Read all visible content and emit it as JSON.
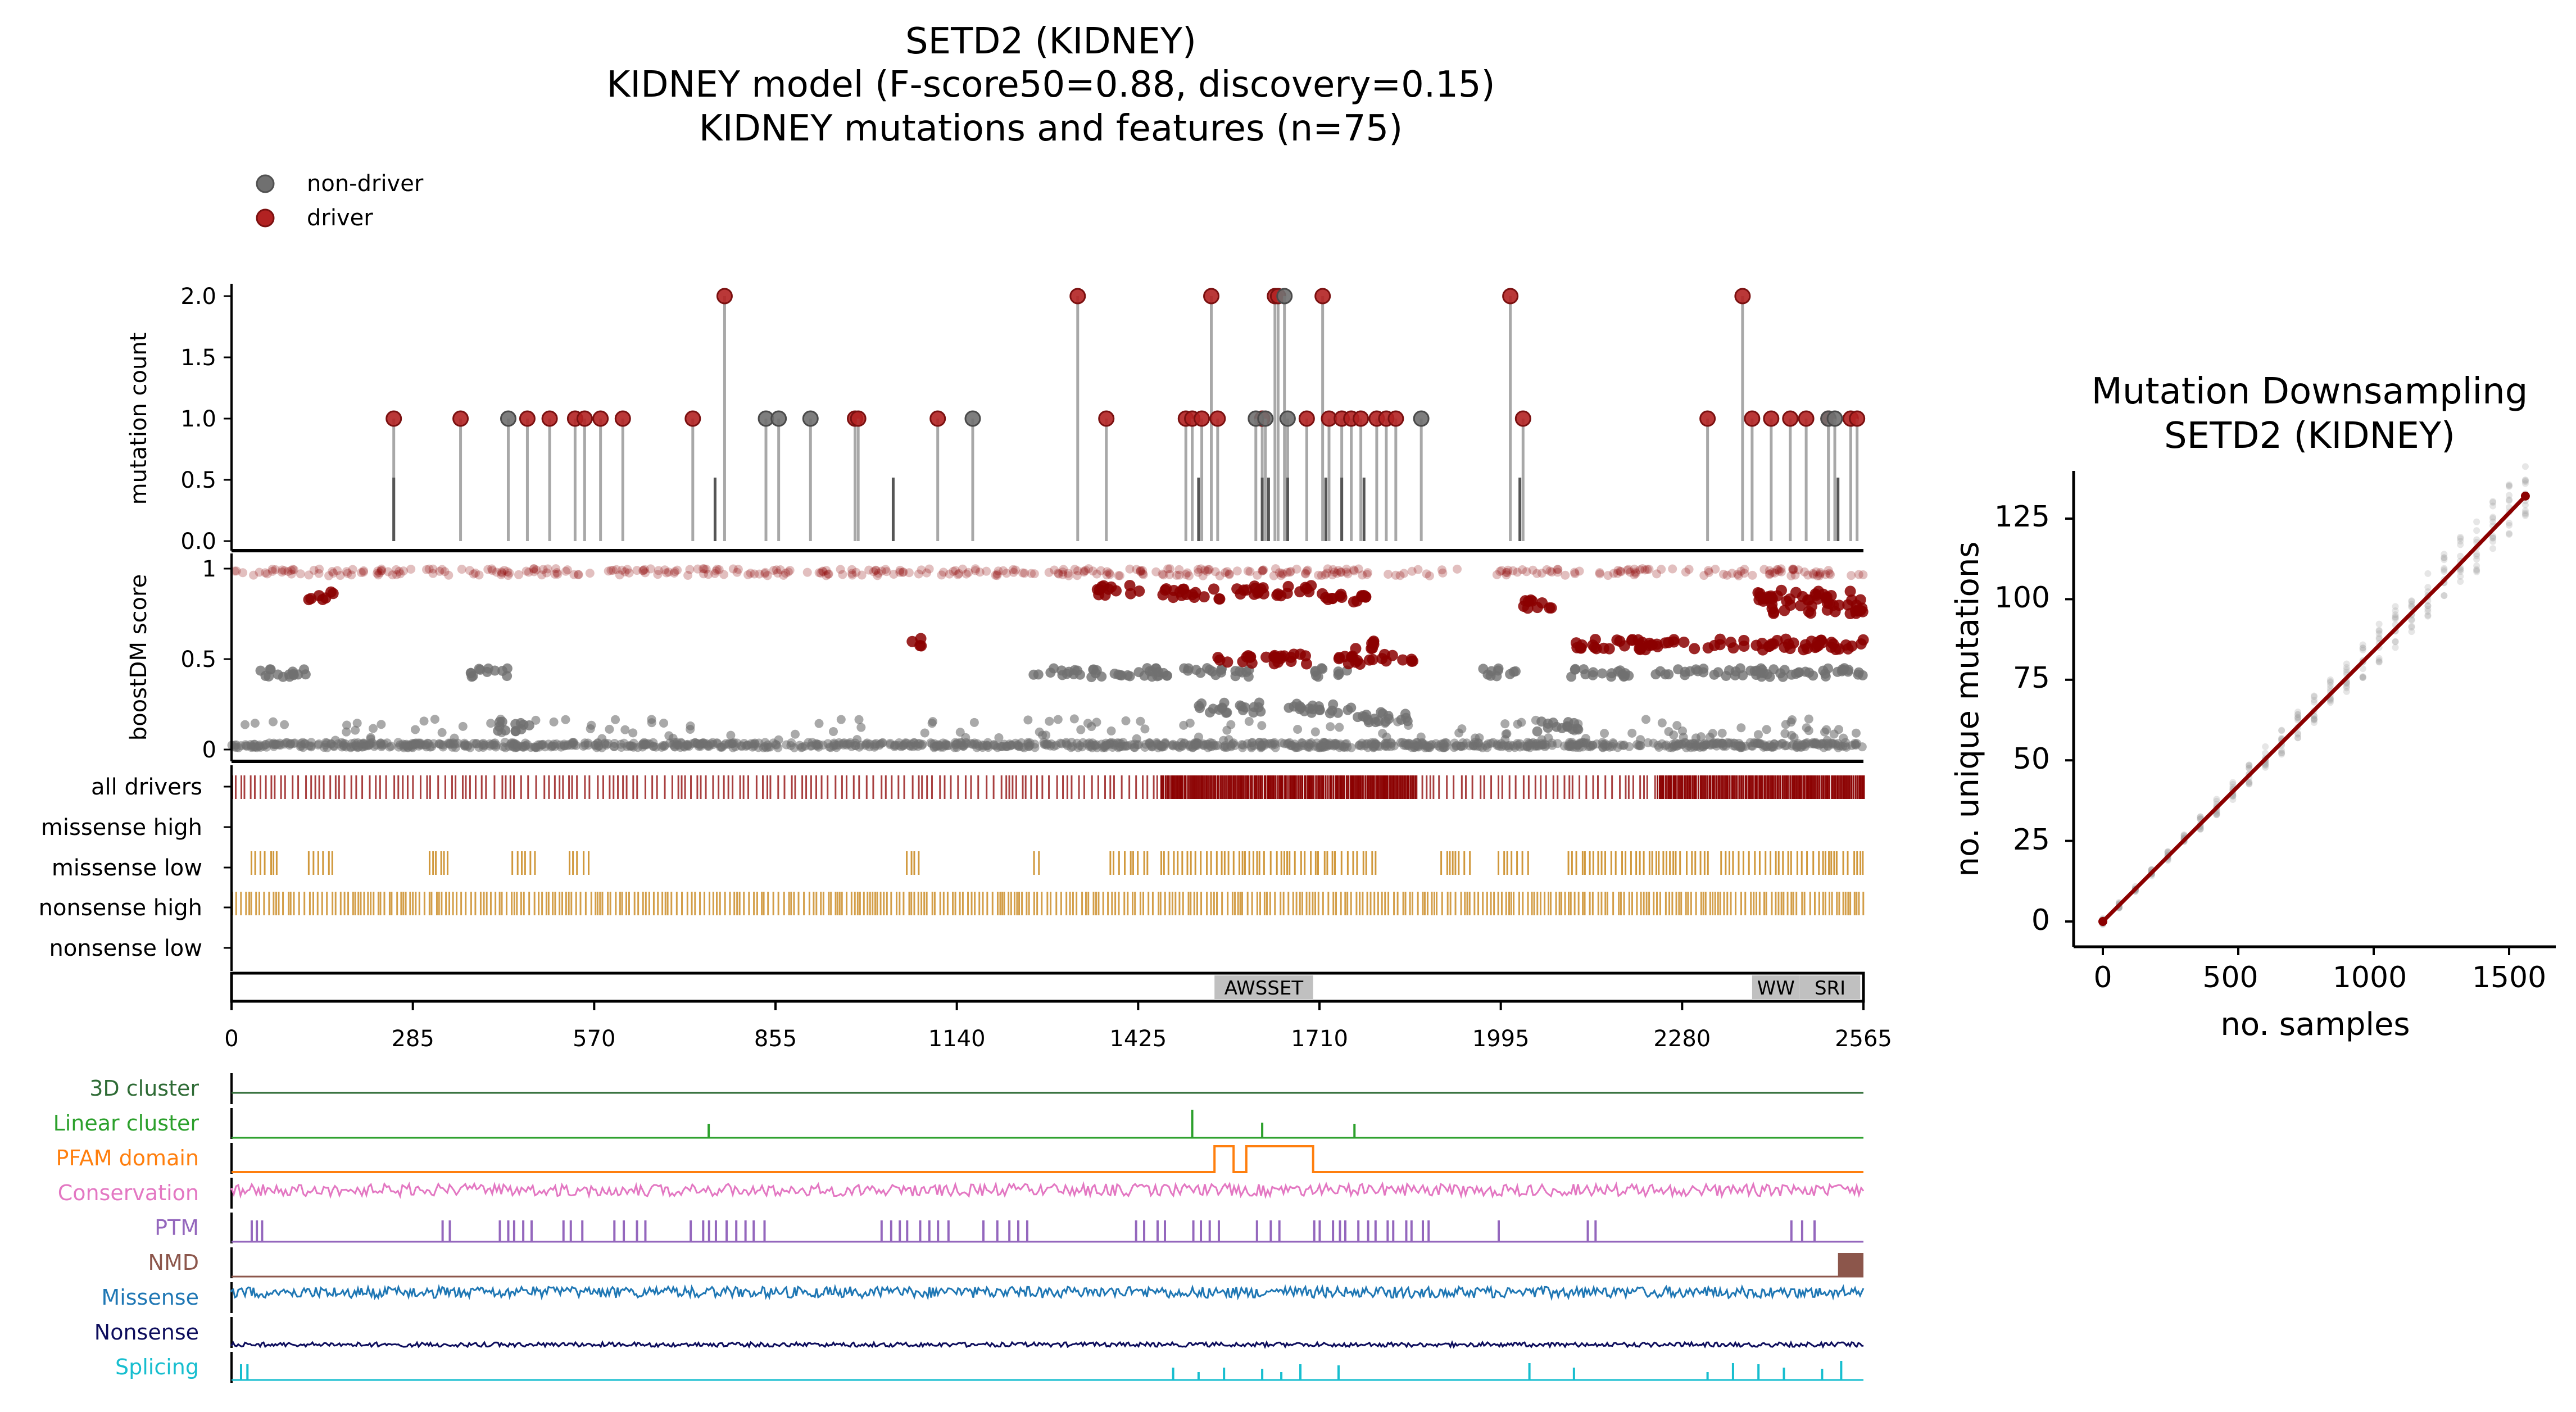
{
  "figure": {
    "title_line1": "SETD2 (KIDNEY)",
    "title_line2": "KIDNEY model (F-score50=0.88, discovery=0.15)",
    "title_line3": "KIDNEY mutations and features (n=75)"
  },
  "legend": {
    "placement": "top-left",
    "items": [
      {
        "label": "non-driver",
        "color": "#707070"
      },
      {
        "label": "driver",
        "color": "#b22222"
      }
    ]
  },
  "colors": {
    "driver": "#b22222",
    "driver_dark": "#8b0000",
    "nondriver": "#707070",
    "csqn": "#c8861a",
    "cluster3d": "#2e6b35",
    "linear": "#2ca02c",
    "pfam": "#ff7f0e",
    "conservation": "#e377c2",
    "ptm": "#9467bd",
    "nmd": "#8c564b",
    "missense": "#1f77b4",
    "nonsense": "#0d0d5c",
    "splicing": "#17becf",
    "domain_fill": "#c0c0c0",
    "fit_line": "#8b0000"
  },
  "panels": {
    "mutation_count": {
      "ylabel": "mutation count",
      "yticks": [
        "0.0",
        "0.5",
        "1.0",
        "1.5",
        "2.0"
      ]
    },
    "boostdm": {
      "ylabel": "boostDM score",
      "yticks": [
        "0",
        "0.5",
        "1"
      ]
    },
    "csqn_rows": [
      "all drivers",
      "missense high",
      "missense low",
      "nonsense high",
      "nonsense low"
    ],
    "domains": [
      {
        "name": "AWSSET",
        "start": 1545,
        "end": 1700
      },
      {
        "name": "WW",
        "start": 2390,
        "end": 2465
      },
      {
        "name": "SRI",
        "start": 2465,
        "end": 2560
      }
    ],
    "x_axis": {
      "min": 0,
      "max": 2565,
      "ticks": [
        "0",
        "285",
        "570",
        "855",
        "1140",
        "1425",
        "1710",
        "1995",
        "2280",
        "2565"
      ]
    },
    "feature_tracks": [
      "3D cluster",
      "Linear cluster",
      "PFAM domain",
      "Conservation",
      "PTM",
      "NMD",
      "Missense",
      "Nonsense",
      "Splicing"
    ]
  },
  "downsampling": {
    "title_line1": "Mutation Downsampling",
    "title_line2": "SETD2 (KIDNEY)",
    "xlabel": "no. samples",
    "ylabel": "no. unique mutations",
    "xticks": [
      "0",
      "500",
      "1000",
      "1500"
    ],
    "yticks": [
      "0",
      "25",
      "50",
      "75",
      "100",
      "125"
    ]
  },
  "chart_data": [
    {
      "type": "scatter",
      "subtype": "lollipop",
      "xlabel": "",
      "ylabel": "mutation count",
      "xlim": [
        0,
        2565
      ],
      "ylim": [
        0,
        2.1
      ],
      "series": [
        {
          "name": "driver",
          "x": [
            255,
            360,
            465,
            500,
            540,
            555,
            580,
            615,
            725,
            775,
            980,
            985,
            1110,
            1330,
            1375,
            1500,
            1510,
            1525,
            1540,
            1550,
            1620,
            1640,
            1645,
            1690,
            1715,
            1725,
            1745,
            1760,
            1775,
            1800,
            1815,
            1830,
            2010,
            2030,
            2320,
            2375,
            2390,
            2420,
            2450,
            2475,
            2510,
            2545,
            2555
          ],
          "y": [
            1,
            1,
            1,
            1,
            1,
            1,
            1,
            1,
            1,
            2,
            1,
            1,
            1,
            2,
            1,
            1,
            1,
            1,
            2,
            1,
            1,
            2,
            2,
            1,
            2,
            1,
            1,
            1,
            1,
            1,
            1,
            1,
            2,
            1,
            1,
            2,
            1,
            1,
            1,
            1,
            1,
            1,
            1
          ]
        },
        {
          "name": "non-driver",
          "x": [
            435,
            840,
            860,
            910,
            1165,
            1610,
            1625,
            1655,
            1660,
            1870,
            2510,
            2520
          ],
          "y": [
            1,
            1,
            1,
            1,
            1,
            1,
            1,
            2,
            1,
            1,
            1,
            1
          ]
        }
      ]
    },
    {
      "type": "line",
      "title": "Mutation Downsampling SETD2 (KIDNEY)",
      "xlabel": "no. samples",
      "ylabel": "no. unique mutations",
      "xlim": [
        -80,
        1620
      ],
      "ylim": [
        -5,
        140
      ],
      "x": [
        0,
        250,
        500,
        750,
        1000,
        1250,
        1560
      ],
      "y": [
        0,
        21,
        42,
        63,
        84,
        105,
        132
      ]
    }
  ]
}
